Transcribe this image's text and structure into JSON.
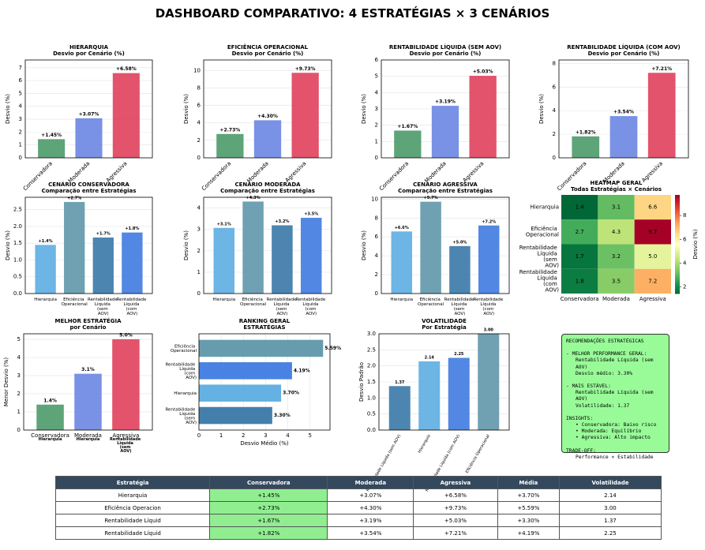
{
  "title": "DASHBOARD COMPARATIVO: 4 ESTRATÉGIAS × 3 CENÁRIOS",
  "chart_data": [
    {
      "type": "bar",
      "title": "HIERARQUIA",
      "subtitle": "Desvio por Cenário (%)",
      "ylabel": "Desvio (%)",
      "categories": [
        "Conservadora",
        "Moderada",
        "Agressiva"
      ],
      "values": [
        1.45,
        3.07,
        6.58
      ],
      "value_labels": [
        "+1.45%",
        "+3.07%",
        "+6.58%"
      ],
      "colors": [
        "#4c9a6a",
        "#6a86e3",
        "#e0405c"
      ],
      "ylim": [
        0,
        7.6
      ],
      "yticks": [
        0,
        1,
        2,
        3,
        4,
        5,
        6,
        7
      ],
      "grid": true,
      "xtick_rotation": 45
    },
    {
      "type": "bar",
      "title": "EFICIÊNCIA OPERACIONAL",
      "subtitle": "Desvio por Cenário (%)",
      "ylabel": "Desvio (%)",
      "categories": [
        "Conservadora",
        "Moderada",
        "Agressiva"
      ],
      "values": [
        2.73,
        4.3,
        9.73
      ],
      "value_labels": [
        "+2.73%",
        "+4.30%",
        "+9.73%"
      ],
      "colors": [
        "#4c9a6a",
        "#6a86e3",
        "#e0405c"
      ],
      "ylim": [
        0,
        11.2
      ],
      "yticks": [
        0,
        2,
        4,
        6,
        8,
        10
      ],
      "grid": true,
      "xtick_rotation": 45
    },
    {
      "type": "bar",
      "title": "RENTABILIDADE LÍQUIDA (SEM AOV)",
      "subtitle": "Desvio por Cenário (%)",
      "ylabel": "Desvio (%)",
      "categories": [
        "Conservadora",
        "Moderada",
        "Agressiva"
      ],
      "values": [
        1.67,
        3.19,
        5.03
      ],
      "value_labels": [
        "+1.67%",
        "+3.19%",
        "+5.03%"
      ],
      "colors": [
        "#4c9a6a",
        "#6a86e3",
        "#e0405c"
      ],
      "ylim": [
        0,
        6
      ],
      "yticks": [
        0,
        1,
        2,
        3,
        4,
        5,
        6
      ],
      "grid": true,
      "xtick_rotation": 45
    },
    {
      "type": "bar",
      "title": "RENTABILIDADE LÍQUIDA (COM AOV)",
      "subtitle": "Desvio por Cenário (%)",
      "ylabel": "Desvio (%)",
      "categories": [
        "Conservadora",
        "Moderada",
        "Agressiva"
      ],
      "values": [
        1.82,
        3.54,
        7.21
      ],
      "value_labels": [
        "+1.82%",
        "+3.54%",
        "+7.21%"
      ],
      "colors": [
        "#4c9a6a",
        "#6a86e3",
        "#e0405c"
      ],
      "ylim": [
        0,
        8.3
      ],
      "yticks": [
        0,
        2,
        4,
        6,
        8
      ],
      "grid": true,
      "xtick_rotation": 45
    },
    {
      "type": "bar",
      "title": "CENÁRIO CONSERVADORA",
      "subtitle": "Comparação entre Estratégias",
      "ylabel": "Desvio (%)",
      "categories": [
        "Hierarquia",
        "Eficiência Operacional",
        "Rentabilidade Líquida (sem AOV)",
        "Rentabilidade Líquida (com AOV)"
      ],
      "values": [
        1.45,
        2.73,
        1.67,
        1.82
      ],
      "value_labels": [
        "+1.4%",
        "+2.7%",
        "+1.7%",
        "+1.8%"
      ],
      "colors": [
        "#5dade2",
        "#5f97aa",
        "#3a78a8",
        "#3f7be0"
      ],
      "ylim": [
        0,
        2.87
      ],
      "yticks": [
        {
          "value": 0,
          "label": "0.0"
        },
        {
          "value": 0.5,
          "label": "0.5"
        },
        {
          "value": 1,
          "label": "1.0"
        },
        {
          "value": 1.5,
          "label": "1.5"
        },
        {
          "value": 2,
          "label": "2.0"
        },
        {
          "value": 2.5,
          "label": "2.5"
        }
      ],
      "grid": true
    },
    {
      "type": "bar",
      "title": "CENÁRIO MODERADA",
      "subtitle": "Comparação entre Estratégias",
      "ylabel": "Desvio (%)",
      "categories": [
        "Hierarquia",
        "Eficiência Operacional",
        "Rentabilidade Líquida (sem AOV)",
        "Rentabilidade Líquida (com AOV)"
      ],
      "values": [
        3.07,
        4.3,
        3.19,
        3.54
      ],
      "value_labels": [
        "+3.1%",
        "+4.3%",
        "+3.2%",
        "+3.5%"
      ],
      "colors": [
        "#5dade2",
        "#5f97aa",
        "#3a78a8",
        "#3f7be0"
      ],
      "ylim": [
        0,
        4.5
      ],
      "yticks": [
        0,
        1,
        2,
        3,
        4
      ],
      "grid": true
    },
    {
      "type": "bar",
      "title": "CENÁRIO AGRESSIVA",
      "subtitle": "Comparação entre Estratégias",
      "ylabel": "Desvio (%)",
      "categories": [
        "Hierarquia",
        "Eficiência Operacional",
        "Rentabilidade Líquida (sem AOV)",
        "Rentabilidade Líquida (com AOV)"
      ],
      "values": [
        6.58,
        9.73,
        5.03,
        7.21
      ],
      "value_labels": [
        "+6.6%",
        "+9.7%",
        "+5.0%",
        "+7.2%"
      ],
      "colors": [
        "#5dade2",
        "#5f97aa",
        "#3a78a8",
        "#3f7be0"
      ],
      "ylim": [
        0,
        10.2
      ],
      "yticks": [
        0,
        2,
        4,
        6,
        8,
        10
      ],
      "grid": true
    },
    {
      "type": "heatmap",
      "title": "HEATMAP GERAL",
      "subtitle": "Todas Estratégias × Cenários",
      "rows": [
        "Hierarquia",
        "Eficiência Operacional",
        "Rentabilidade Líquida (sem AOV)",
        "Rentabilidade Líquida (com AOV)"
      ],
      "columns": [
        "Conservadora",
        "Moderada",
        "Agressiva"
      ],
      "values": [
        [
          1.45,
          3.07,
          6.58
        ],
        [
          2.73,
          4.3,
          9.73
        ],
        [
          1.67,
          3.19,
          5.03
        ],
        [
          1.82,
          3.54,
          7.21
        ]
      ],
      "value_labels": [
        [
          "1.4",
          "3.1",
          "6.6"
        ],
        [
          "2.7",
          "4.3",
          "9.7"
        ],
        [
          "1.7",
          "3.2",
          "5.0"
        ],
        [
          "1.8",
          "3.5",
          "7.2"
        ]
      ],
      "colormap": "RdYlGn_r",
      "clim": [
        1.45,
        9.73
      ],
      "cticks": [
        2,
        4,
        6,
        8
      ],
      "colorbar_label": "Desvio (%)"
    },
    {
      "type": "bar",
      "title": "MELHOR ESTRATÉGIA",
      "subtitle": "por Cenário",
      "ylabel": "Menor Desvio (%)",
      "categories": [
        "Conservadora",
        "Moderada",
        "Agressiva"
      ],
      "values": [
        1.4,
        3.1,
        5.0
      ],
      "value_labels": [
        "1.4%",
        "3.1%",
        "5.0%"
      ],
      "winners": [
        "Hierarquia",
        "Hierarquia",
        "Rentabilidade Líquida (sem AOV)"
      ],
      "colors": [
        "#4c9a6a",
        "#6a86e3",
        "#e0405c"
      ],
      "ylim": [
        0,
        5.3
      ],
      "yticks": [
        0,
        1,
        2,
        3,
        4,
        5
      ],
      "grid": true
    },
    {
      "type": "barh",
      "title": "RANKING GERAL",
      "subtitle": "ESTRATÉGIAS",
      "xlabel": "Desvio Médio (%)",
      "categories": [
        "Eficiência Operacional",
        "Rentabilidade Líquida (com AOV)",
        "Hierarquia",
        "Rentabilidade Líquida (sem AOV)"
      ],
      "values": [
        5.59,
        4.19,
        3.7,
        3.3
      ],
      "value_labels": [
        "5.59%",
        "4.19%",
        "3.70%",
        "3.30%"
      ],
      "colors": [
        "#5f97aa",
        "#3f7be0",
        "#5dade2",
        "#3a78a8"
      ],
      "xlim": [
        0,
        5.9
      ],
      "xticks": [
        0,
        1,
        2,
        3,
        4,
        5
      ],
      "grid": true
    },
    {
      "type": "bar",
      "title": "VOLATILIDADE",
      "subtitle": "Por Estratégia",
      "ylabel": "Desvio Padrão",
      "categories": [
        "Rentabilidade Líquida (sem AOV)",
        "Hierarquia",
        "Rentabilidade Líquida (com AOV)",
        "Eficiência Operacional"
      ],
      "values": [
        1.37,
        2.14,
        2.25,
        3.0
      ],
      "value_labels": [
        "1.37",
        "2.14",
        "2.25",
        "3.00"
      ],
      "colors": [
        "#3a78a8",
        "#5dade2",
        "#3f7be0",
        "#5f97aa"
      ],
      "ylim": [
        0,
        3.0
      ],
      "yticks": [
        {
          "value": 0,
          "label": "0.0"
        },
        {
          "value": 0.5,
          "label": "0.5"
        },
        {
          "value": 1,
          "label": "1.0"
        },
        {
          "value": 1.5,
          "label": "1.5"
        },
        {
          "value": 2,
          "label": "2.0"
        },
        {
          "value": 2.5,
          "label": "2.5"
        },
        {
          "value": 3,
          "label": "3.0"
        }
      ],
      "grid": true,
      "xtick_rotation": 60
    }
  ],
  "recommendations": [
    {
      "lines": [
        "RECOMENDAÇÕES ESTRATÉGICAS"
      ]
    },
    {
      "lines": [
        "- MELHOR PERFORMANCE GERAL:",
        "Rentabilidade Líquida (sem AOV)",
        "Desvio médio: 3.30%"
      ]
    },
    {
      "lines": [
        "- MAIS ESTÁVEL:",
        "Rentabilidade Líquida (sem AOV)",
        "Volatilidade: 1.37"
      ]
    },
    {
      "lines": [
        "INSIGHTS:",
        "• Conservadora: Baixo risco",
        "• Moderada: Equilíbrio",
        "• Agressiva: Alto impacto"
      ]
    },
    {
      "lines": [
        "TRADE-OFF:",
        "Performance × Estabilidade"
      ]
    }
  ],
  "table": {
    "header": [
      "Estratégia",
      "Conservadora",
      "Moderada",
      "Agressiva",
      "Média",
      "Volatilidade"
    ],
    "rows": [
      [
        "Hierarquia",
        "+1.45%",
        "+3.07%",
        "+6.58%",
        "+3.70%",
        "2.14"
      ],
      [
        "Eficiência Operacion",
        "+2.73%",
        "+4.30%",
        "+9.73%",
        "+5.59%",
        "3.00"
      ],
      [
        "Rentabilidade Líquid",
        "+1.67%",
        "+3.19%",
        "+5.03%",
        "+3.30%",
        "1.37"
      ],
      [
        "Rentabilidade Líquid",
        "+1.82%",
        "+3.54%",
        "+7.21%",
        "+4.19%",
        "2.25"
      ]
    ],
    "header_color": "#34495e",
    "highlight_column": 1,
    "highlight_color": "#90ee90"
  }
}
